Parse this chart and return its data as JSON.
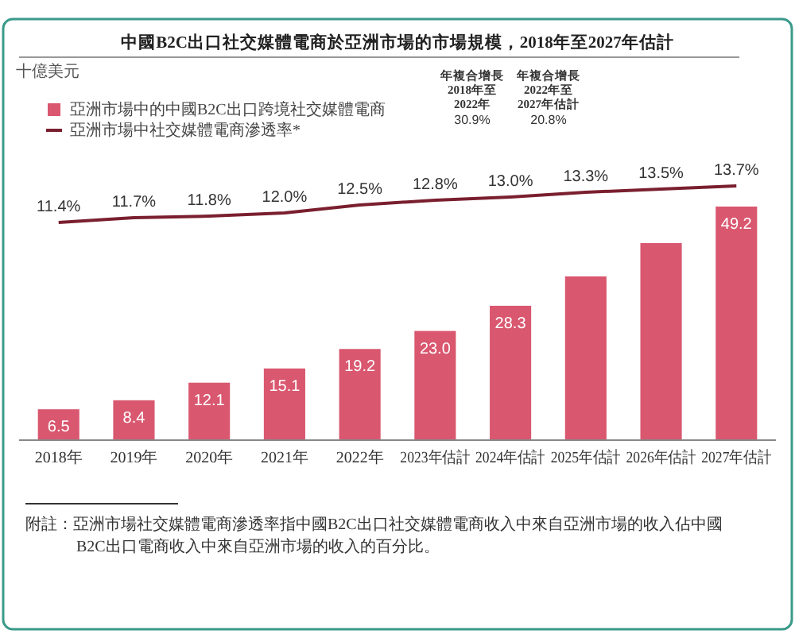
{
  "chart_data": {
    "type": "bar",
    "title": "中國B2C出口社交媒體電商於亞洲市場的市場規模，2018年至2027年估計",
    "categories": [
      "2018年",
      "2019年",
      "2020年",
      "2021年",
      "2022年",
      "2023年估計",
      "2024年估計",
      "2025年估計",
      "2026年估計",
      "2027年估計"
    ],
    "series": [
      {
        "name": "亞洲市場中的中國B2C出口跨境社交媒體電商",
        "color": "#d9576f",
        "values": [
          6.5,
          8.4,
          12.1,
          15.1,
          19.2,
          23.0,
          28.3,
          34.5,
          41.5,
          49.2
        ],
        "value_labels": [
          "6.5",
          "8.4",
          "12.1",
          "15.1",
          "19.2",
          "23.0",
          "28.3",
          null,
          null,
          "49.2"
        ]
      },
      {
        "name": "亞洲市場中社交媒體電商滲透率*",
        "type": "line",
        "axis": "y2",
        "color": "#7a1f2e",
        "values": [
          11.4,
          11.7,
          11.8,
          12.0,
          12.5,
          12.8,
          13.0,
          13.3,
          13.5,
          13.7
        ],
        "value_labels": [
          "11.4%",
          "11.7%",
          "11.8%",
          "12.0%",
          "12.5%",
          "12.8%",
          "13.0%",
          "13.3%",
          "13.5%",
          "13.7%"
        ]
      }
    ],
    "legend": "top left",
    "tick_labels": "x",
    "marker": "none",
    "line_style": "solid",
    "annotations": [
      "十億美元",
      "年複合增長\n2018年至\n2022年",
      "30.9%",
      "年複合增長\n2022年至\n2027年估計",
      "20.8%",
      "附註：亞洲市場社交媒體電商滲透率指中國B2C出口社交媒體電商收入中來自亞洲市場的收入佔中國B2C出口電商收入中來自亞洲市場的收入的百分比。"
    ]
  }
}
